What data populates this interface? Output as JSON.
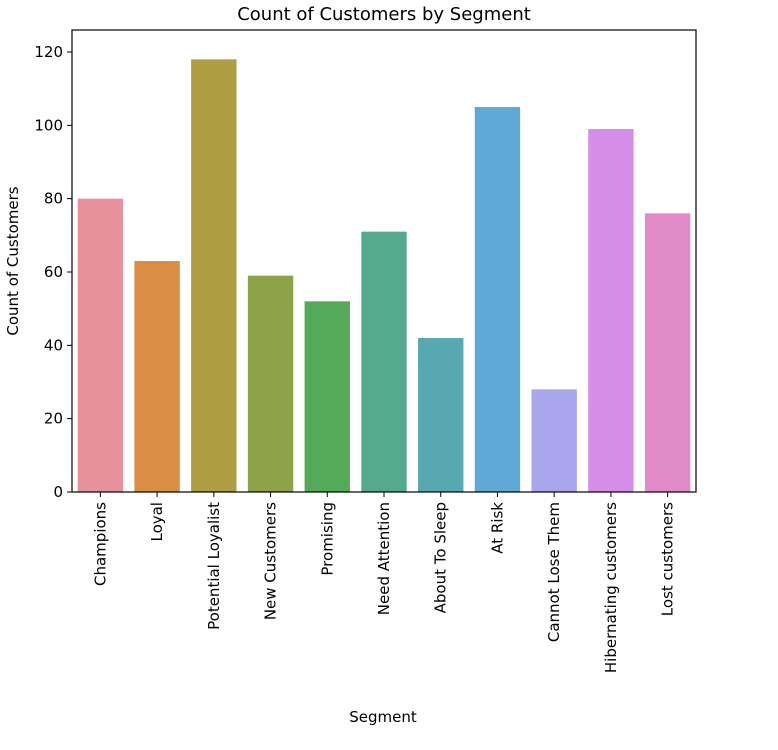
{
  "chart_data": {
    "type": "bar",
    "title": "Count of Customers by Segment",
    "xlabel": "Segment",
    "ylabel": "Count of Customers",
    "ylim": [
      0,
      126
    ],
    "yticks": [
      0,
      20,
      40,
      60,
      80,
      100,
      120
    ],
    "grid": false,
    "legend": "none",
    "categories": [
      "Champions",
      "Loyal",
      "Potential Loyalist",
      "New Customers",
      "Promising",
      "Need Attention",
      "About To Sleep",
      "At Risk",
      "Cannot Lose Them",
      "Hibernating customers",
      "Lost customers"
    ],
    "values": [
      80,
      63,
      118,
      59,
      52,
      71,
      42,
      105,
      28,
      99,
      76
    ],
    "colors": [
      "#e6919c",
      "#d98d45",
      "#af9d44",
      "#8ea349",
      "#54aa59",
      "#55a98d",
      "#58a8b2",
      "#60a8d6",
      "#a9a6ee",
      "#d58ee8",
      "#e08ac8"
    ]
  }
}
